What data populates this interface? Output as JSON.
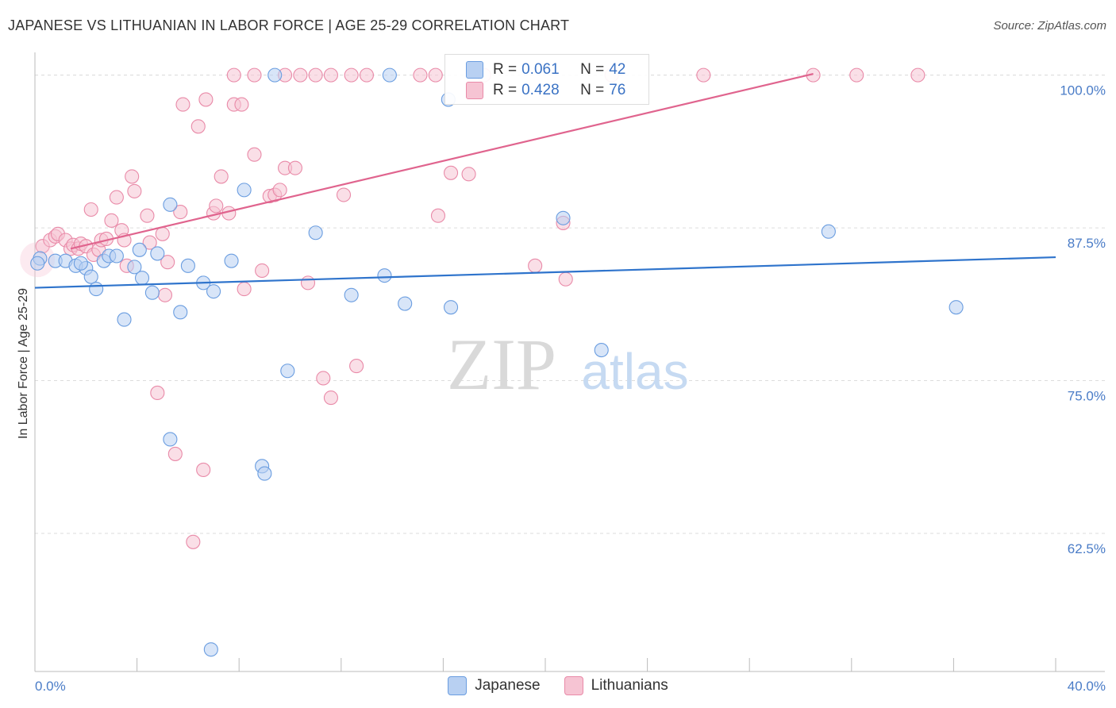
{
  "title": "JAPANESE VS LITHUANIAN IN LABOR FORCE | AGE 25-29 CORRELATION CHART",
  "source": "Source: ZipAtlas.com",
  "watermark": {
    "zip": "ZIP",
    "atlas": "atlas"
  },
  "colors": {
    "japanese_fill": "#b8d0f2",
    "japanese_stroke": "#6a9de0",
    "japanese_line": "#2f74cc",
    "lithuanian_fill": "#f6c4d3",
    "lithuanian_stroke": "#e98aa8",
    "lithuanian_line": "#e0648e",
    "grid": "#dddddd",
    "axis": "#bbbbbb"
  },
  "legend": {
    "rows": [
      {
        "r_label": "R = ",
        "r_value": "0.061",
        "n_label": "N = ",
        "n_value": "42"
      },
      {
        "r_label": "R = ",
        "r_value": "0.428",
        "n_label": "N = ",
        "n_value": "76"
      }
    ]
  },
  "bottom_legend": [
    "Japanese",
    "Lithuanians"
  ],
  "chart_data": {
    "type": "scatter",
    "xlabel": "",
    "ylabel": "In Labor Force | Age 25-29",
    "xlim": [
      0,
      40
    ],
    "ylim": [
      51.2,
      101.6
    ],
    "x_tick_labels": [
      {
        "value": 0,
        "label": "0.0%"
      },
      {
        "value": 40,
        "label": "40.0%"
      }
    ],
    "y_tick_labels": [
      {
        "value": 100,
        "label": "100.0%"
      },
      {
        "value": 87.5,
        "label": "87.5%"
      },
      {
        "value": 75,
        "label": "75.0%"
      },
      {
        "value": 62.5,
        "label": "62.5%"
      }
    ],
    "x_minor_ticks": [
      4,
      8,
      12,
      16,
      20,
      24,
      28,
      32,
      36,
      40
    ],
    "series": [
      {
        "name": "Japanese",
        "trend": {
          "x0": 0,
          "y0": 82.6,
          "x1": 40,
          "y1": 85.1
        },
        "points": [
          [
            0.2,
            85.0
          ],
          [
            0.8,
            84.8
          ],
          [
            1.2,
            84.8
          ],
          [
            1.6,
            84.4
          ],
          [
            2.0,
            84.2
          ],
          [
            1.8,
            84.6
          ],
          [
            2.2,
            83.5
          ],
          [
            2.4,
            82.5
          ],
          [
            2.7,
            84.8
          ],
          [
            2.9,
            85.2
          ],
          [
            3.2,
            85.2
          ],
          [
            3.5,
            80.0
          ],
          [
            3.9,
            84.3
          ],
          [
            4.1,
            85.7
          ],
          [
            4.2,
            83.4
          ],
          [
            4.6,
            82.2
          ],
          [
            4.8,
            85.4
          ],
          [
            5.3,
            89.4
          ],
          [
            5.7,
            80.6
          ],
          [
            6.0,
            84.4
          ],
          [
            6.6,
            83.0
          ],
          [
            7.0,
            82.3
          ],
          [
            7.7,
            84.8
          ],
          [
            8.2,
            90.6
          ],
          [
            6.9,
            53.0
          ],
          [
            8.9,
            68.0
          ],
          [
            9.0,
            67.4
          ],
          [
            9.4,
            100.0
          ],
          [
            9.9,
            75.8
          ],
          [
            11.0,
            87.1
          ],
          [
            12.4,
            82.0
          ],
          [
            13.9,
            100.0
          ],
          [
            13.7,
            83.6
          ],
          [
            14.5,
            81.3
          ],
          [
            16.2,
            98.0
          ],
          [
            16.3,
            81.0
          ],
          [
            5.3,
            70.2
          ],
          [
            20.7,
            88.3
          ],
          [
            22.2,
            77.5
          ],
          [
            31.1,
            87.2
          ],
          [
            36.1,
            81.0
          ],
          [
            0.1,
            84.6
          ]
        ]
      },
      {
        "name": "Lithuanians",
        "trend": {
          "x0": 1.4,
          "y0": 85.8,
          "x1": 30.5,
          "y1": 100.1
        },
        "points": [
          [
            0.3,
            86.0
          ],
          [
            0.6,
            86.5
          ],
          [
            0.8,
            86.8
          ],
          [
            0.9,
            87.0
          ],
          [
            1.2,
            86.5
          ],
          [
            1.4,
            85.8
          ],
          [
            1.5,
            86.1
          ],
          [
            1.7,
            85.8
          ],
          [
            2.2,
            89.0
          ],
          [
            1.8,
            86.2
          ],
          [
            2.0,
            86.0
          ],
          [
            2.3,
            85.3
          ],
          [
            2.5,
            85.7
          ],
          [
            2.6,
            86.5
          ],
          [
            2.8,
            86.6
          ],
          [
            3.0,
            88.1
          ],
          [
            3.2,
            90.0
          ],
          [
            3.4,
            87.3
          ],
          [
            3.5,
            86.5
          ],
          [
            3.6,
            84.4
          ],
          [
            3.8,
            91.7
          ],
          [
            3.9,
            90.5
          ],
          [
            4.4,
            88.5
          ],
          [
            4.5,
            86.3
          ],
          [
            5.0,
            87.0
          ],
          [
            5.2,
            84.7
          ],
          [
            5.7,
            88.8
          ],
          [
            5.8,
            97.6
          ],
          [
            6.4,
            95.8
          ],
          [
            6.7,
            98.0
          ],
          [
            7.0,
            88.7
          ],
          [
            7.1,
            89.3
          ],
          [
            7.3,
            91.7
          ],
          [
            7.6,
            88.7
          ],
          [
            7.8,
            97.6
          ],
          [
            8.1,
            97.6
          ],
          [
            8.2,
            82.5
          ],
          [
            8.6,
            93.5
          ],
          [
            8.9,
            84.0
          ],
          [
            9.2,
            90.1
          ],
          [
            9.4,
            90.2
          ],
          [
            9.6,
            90.6
          ],
          [
            9.8,
            92.4
          ],
          [
            10.2,
            92.4
          ],
          [
            10.7,
            83.0
          ],
          [
            11.3,
            75.2
          ],
          [
            11.6,
            73.6
          ],
          [
            12.1,
            90.2
          ],
          [
            12.6,
            76.2
          ],
          [
            13.0,
            100.0
          ],
          [
            7.8,
            100.0
          ],
          [
            8.6,
            100.0
          ],
          [
            9.8,
            100.0
          ],
          [
            10.4,
            100.0
          ],
          [
            11.0,
            100.0
          ],
          [
            11.6,
            100.0
          ],
          [
            12.4,
            100.0
          ],
          [
            15.1,
            100.0
          ],
          [
            15.7,
            100.0
          ],
          [
            15.8,
            88.5
          ],
          [
            16.3,
            92.0
          ],
          [
            17.0,
            91.9
          ],
          [
            17.6,
            100.0
          ],
          [
            19.6,
            84.4
          ],
          [
            20.7,
            87.9
          ],
          [
            20.8,
            83.3
          ],
          [
            22.6,
            100.0
          ],
          [
            26.2,
            100.0
          ],
          [
            30.5,
            100.0
          ],
          [
            32.2,
            100.0
          ],
          [
            34.6,
            100.0
          ],
          [
            4.8,
            74.0
          ],
          [
            5.5,
            69.0
          ],
          [
            6.6,
            67.7
          ],
          [
            6.2,
            61.8
          ],
          [
            5.1,
            82.0
          ]
        ]
      }
    ]
  }
}
